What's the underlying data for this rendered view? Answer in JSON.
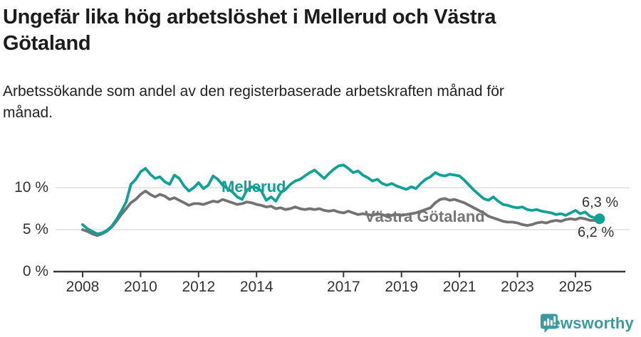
{
  "title": {
    "line1": "Ungefär lika hög arbetslöshet i Mellerud och Västra",
    "line2": "Götaland"
  },
  "subtitle": {
    "line1": "Arbetssökande som andel av den registerbaserade arbetskraften månad för",
    "line2": "månad."
  },
  "chart_data": {
    "type": "line",
    "x0": 2008,
    "x_step_years": 0.1666667,
    "x_tick_years": [
      2008,
      2010,
      2012,
      2014,
      2017,
      2019,
      2021,
      2023,
      2025
    ],
    "x_tick_labels": [
      "2008",
      "2010",
      "2012",
      "2014",
      "2017",
      "2019",
      "2021",
      "2023",
      "2025"
    ],
    "y_ticks": [
      {
        "value": 0,
        "label": "0 %"
      },
      {
        "value": 5,
        "label": "5 %"
      },
      {
        "value": 10,
        "label": "10 %"
      }
    ],
    "ylim": [
      0,
      13.5
    ],
    "grid": "horizontal",
    "legend_position": "inline-labels",
    "series": [
      {
        "name": "Västra Götaland",
        "inline_label": "Västra Götaland",
        "end_label": "6,2 %",
        "color": "#727272",
        "label_color": "#757575",
        "values": [
          5.0,
          4.8,
          4.5,
          4.3,
          4.5,
          4.8,
          5.3,
          6.0,
          6.8,
          7.5,
          8.2,
          8.6,
          9.2,
          9.6,
          9.2,
          8.9,
          9.2,
          9.0,
          8.6,
          8.8,
          8.5,
          8.2,
          7.9,
          8.1,
          8.1,
          8.0,
          8.2,
          8.4,
          8.3,
          8.6,
          8.4,
          8.2,
          8.0,
          8.1,
          8.3,
          8.2,
          8.0,
          7.9,
          7.7,
          7.8,
          7.5,
          7.6,
          7.4,
          7.5,
          7.7,
          7.5,
          7.4,
          7.5,
          7.4,
          7.5,
          7.3,
          7.2,
          7.3,
          7.1,
          7.0,
          7.2,
          7.0,
          6.8,
          6.9,
          6.8,
          6.7,
          6.9,
          6.8,
          6.6,
          6.7,
          6.8,
          6.7,
          6.8,
          6.9,
          7.0,
          7.2,
          7.4,
          7.6,
          8.2,
          8.6,
          8.7,
          8.5,
          8.6,
          8.4,
          8.2,
          7.9,
          7.6,
          7.3,
          7.0,
          6.6,
          6.4,
          6.2,
          6.0,
          5.9,
          5.9,
          5.8,
          5.6,
          5.5,
          5.6,
          5.8,
          5.9,
          5.8,
          6.0,
          6.1,
          6.0,
          6.2,
          6.3,
          6.2,
          6.4,
          6.3,
          6.1,
          6.1,
          6.2
        ]
      },
      {
        "name": "Mellerud",
        "inline_label": "Mellerud",
        "end_label": "6,3 %",
        "color": "#10A096",
        "label_color": "#10A096",
        "end_marker": true,
        "values": [
          5.6,
          5.1,
          4.8,
          4.5,
          4.6,
          4.9,
          5.4,
          6.2,
          7.2,
          8.3,
          10.4,
          11.0,
          11.9,
          12.3,
          11.6,
          11.1,
          11.3,
          10.7,
          10.4,
          11.5,
          11.1,
          10.2,
          9.6,
          10.0,
          10.6,
          9.9,
          10.3,
          11.4,
          11.0,
          10.3,
          9.9,
          9.5,
          8.9,
          8.6,
          9.7,
          10.1,
          10.0,
          9.6,
          8.5,
          8.9,
          8.4,
          9.4,
          9.8,
          10.4,
          10.8,
          11.0,
          11.4,
          11.8,
          12.1,
          11.6,
          11.1,
          11.7,
          12.2,
          12.6,
          12.7,
          12.3,
          11.8,
          12.0,
          11.5,
          11.2,
          10.8,
          11.0,
          10.5,
          10.3,
          10.5,
          10.2,
          10.0,
          9.8,
          10.1,
          9.9,
          10.5,
          11.0,
          11.3,
          11.8,
          11.5,
          11.4,
          11.6,
          11.5,
          11.4,
          10.9,
          10.3,
          9.7,
          9.2,
          8.7,
          8.5,
          8.9,
          8.4,
          8.0,
          7.9,
          7.7,
          7.6,
          7.7,
          7.4,
          7.3,
          7.4,
          7.2,
          7.1,
          7.0,
          6.8,
          6.9,
          6.7,
          7.0,
          7.3,
          6.9,
          7.1,
          6.6,
          6.4,
          6.3
        ]
      }
    ],
    "colors": {
      "grid": "#dddddd",
      "axis": "#3a3a3a",
      "tick_text": "#333333"
    }
  },
  "footer": {
    "brand": "Newsworthy",
    "brand_color": "#3A9B9E",
    "icon": "bar-chart-speech-bubble-icon"
  }
}
